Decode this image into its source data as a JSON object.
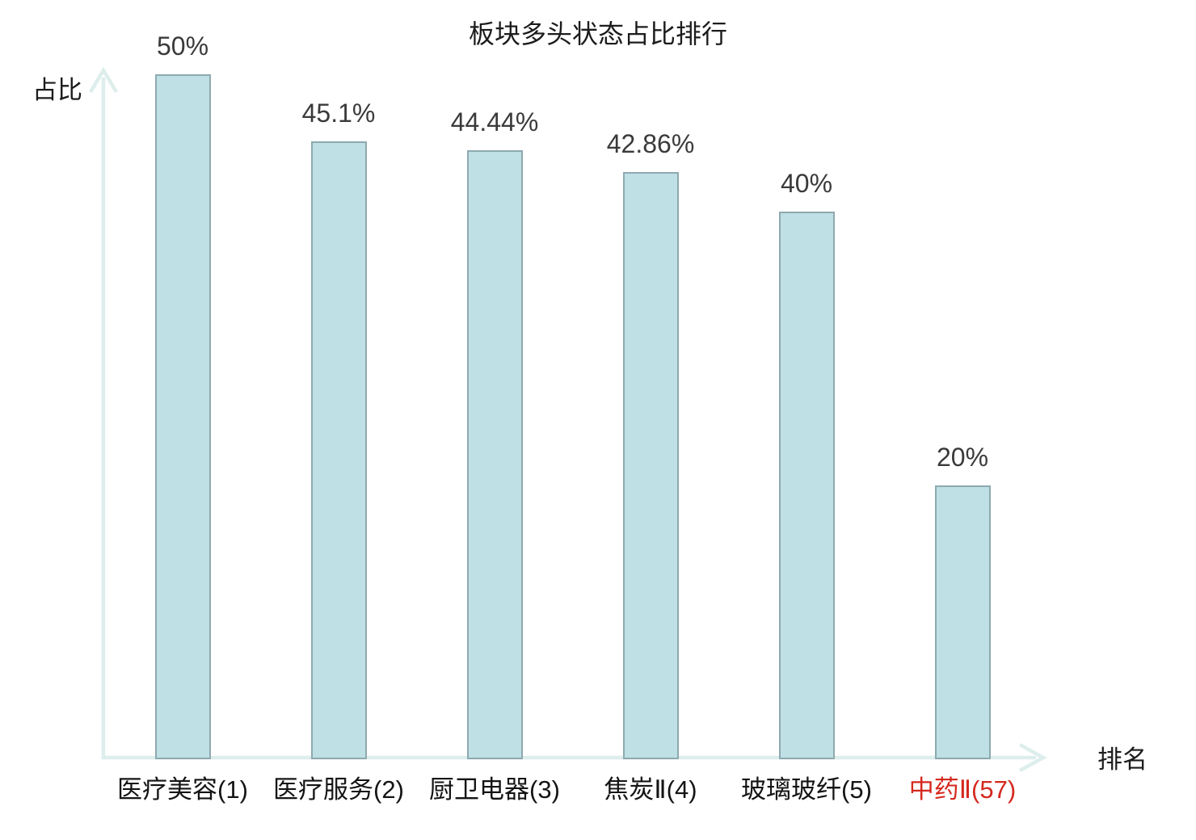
{
  "page": {
    "background": "#ffffff"
  },
  "chart_data": {
    "type": "bar",
    "title": "板块多头状态占比排行",
    "xlabel": "排名",
    "ylabel": "占比",
    "categories": [
      "医疗美容(1)",
      "医疗服务(2)",
      "厨卫电器(3)",
      "焦炭Ⅱ(4)",
      "玻璃玻纤(5)",
      "中药Ⅱ(57)"
    ],
    "values": [
      50,
      45.1,
      44.44,
      42.86,
      40,
      20
    ],
    "value_labels": [
      "50%",
      "45.1%",
      "44.44%",
      "42.86%",
      "40%",
      "20%"
    ],
    "highlighted_category_index": 5,
    "ylim": [
      0,
      50
    ],
    "grid": false,
    "legend": "none",
    "colors": {
      "bar_fill": "#bfe0e4",
      "bar_border": "#8ea9b0",
      "axis": "#ddeeec",
      "title": "#1c1c1c",
      "axis_label": "#1c1c1c",
      "value_label": "#3a3a3a",
      "tick_label": "#141414",
      "highlight_label": "#d5281e",
      "background": "#ffffff"
    }
  }
}
